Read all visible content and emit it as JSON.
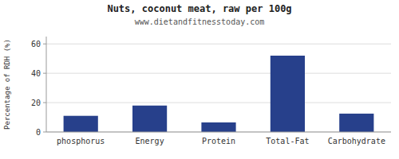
{
  "chart_data": {
    "type": "bar",
    "title": "Nuts, coconut meat, raw per 100g",
    "subtitle": "www.dietandfitnesstoday.com",
    "categories": [
      "phosphorus",
      "Energy",
      "Protein",
      "Total-Fat",
      "Carbohydrate"
    ],
    "values": [
      11,
      18,
      6.5,
      52,
      12.5
    ],
    "color": "#27408B",
    "ylabel": "Percentage of RDH (%)",
    "ylim": [
      0,
      65
    ],
    "yticks": [
      0,
      20,
      40,
      60
    ],
    "grid": true
  }
}
